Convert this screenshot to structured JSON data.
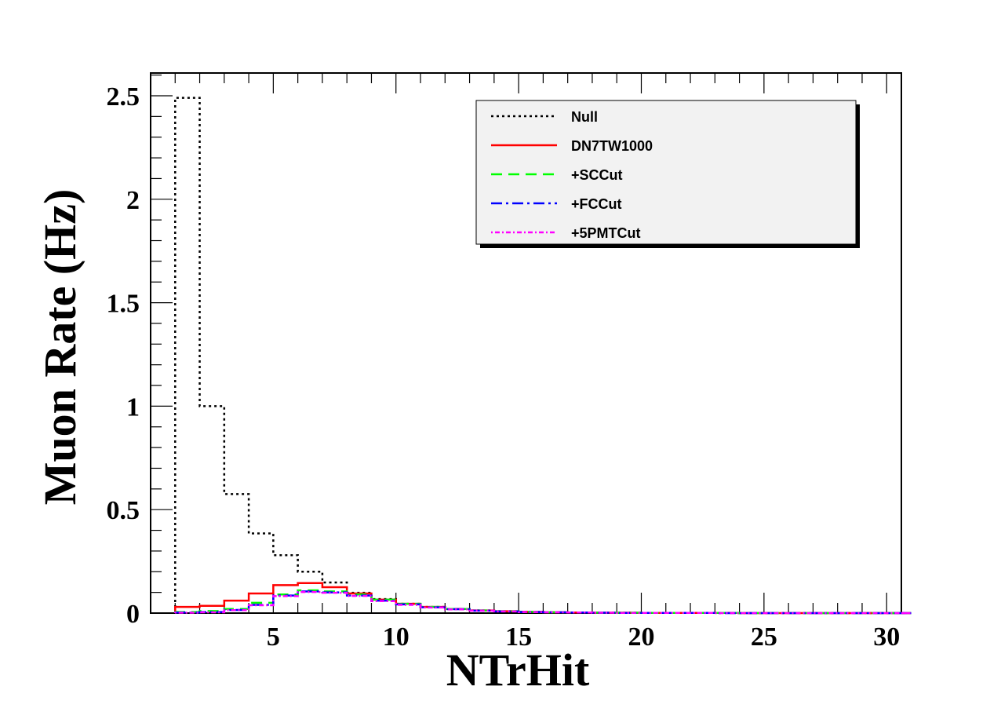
{
  "chart_data": {
    "type": "line",
    "xlabel": "NTrHit",
    "ylabel": "Muon Rate (Hz)",
    "xlim": [
      0,
      30.6
    ],
    "ylim": [
      0,
      2.61
    ],
    "x_ticks": [
      5,
      10,
      15,
      20,
      25,
      30
    ],
    "y_ticks": [
      0,
      0.5,
      1,
      1.5,
      2,
      2.5
    ],
    "y_tick_labels": [
      "0",
      "0.5",
      "1",
      "1.5",
      "2",
      "2.5"
    ],
    "bin_edges": [
      1,
      2,
      3,
      4,
      5,
      6,
      7,
      8,
      9,
      10,
      11,
      12,
      13,
      14,
      15,
      16,
      17,
      18,
      19,
      20,
      21,
      22,
      23,
      24,
      25,
      26,
      27,
      28,
      29,
      30,
      31
    ],
    "legend_position": "top-right",
    "grid": false,
    "series": [
      {
        "name": "Null",
        "color": "#000000",
        "dash": "3,4",
        "width": 2.5,
        "values": [
          2.49,
          1.0,
          0.575,
          0.385,
          0.28,
          0.2,
          0.148,
          0.098,
          0.068,
          0.045,
          0.03,
          0.02,
          0.013,
          0.009,
          0.006,
          0.004,
          0.003,
          0.002,
          0.002,
          0.001,
          0.001,
          0.001,
          0.001,
          0,
          0,
          0,
          0,
          0,
          0,
          0
        ]
      },
      {
        "name": "DN7TW1000",
        "color": "#ff0000",
        "dash": "",
        "width": 2.5,
        "values": [
          0.03,
          0.035,
          0.06,
          0.095,
          0.135,
          0.145,
          0.125,
          0.095,
          0.065,
          0.045,
          0.03,
          0.02,
          0.013,
          0.009,
          0.006,
          0.004,
          0.003,
          0.002,
          0.002,
          0.001,
          0.001,
          0.001,
          0.001,
          0,
          0,
          0,
          0,
          0,
          0,
          0
        ]
      },
      {
        "name": "+SCCut",
        "color": "#00ff00",
        "dash": "14,8",
        "width": 2.5,
        "values": [
          0.005,
          0.01,
          0.02,
          0.05,
          0.09,
          0.11,
          0.105,
          0.09,
          0.065,
          0.045,
          0.03,
          0.02,
          0.013,
          0.009,
          0.006,
          0.004,
          0.003,
          0.002,
          0.002,
          0.001,
          0.001,
          0.001,
          0.001,
          0,
          0,
          0,
          0,
          0,
          0,
          0
        ]
      },
      {
        "name": "+FCCut",
        "color": "#0000ff",
        "dash": "14,5,3,5",
        "width": 2.5,
        "values": [
          0.003,
          0.005,
          0.015,
          0.04,
          0.085,
          0.105,
          0.1,
          0.085,
          0.06,
          0.042,
          0.028,
          0.019,
          0.012,
          0.008,
          0.005,
          0.004,
          0.003,
          0.002,
          0.001,
          0.001,
          0.001,
          0.001,
          0,
          0,
          0,
          0,
          0,
          0,
          0,
          0
        ]
      },
      {
        "name": "+5PMTCut",
        "color": "#ff00ff",
        "dash": "2,3,6,3",
        "width": 2.5,
        "values": [
          0.002,
          0.004,
          0.014,
          0.038,
          0.082,
          0.102,
          0.098,
          0.083,
          0.058,
          0.04,
          0.027,
          0.018,
          0.012,
          0.008,
          0.005,
          0.004,
          0.003,
          0.002,
          0.001,
          0.001,
          0.001,
          0.001,
          0,
          0,
          0,
          0,
          0,
          0,
          0,
          0
        ]
      }
    ]
  }
}
